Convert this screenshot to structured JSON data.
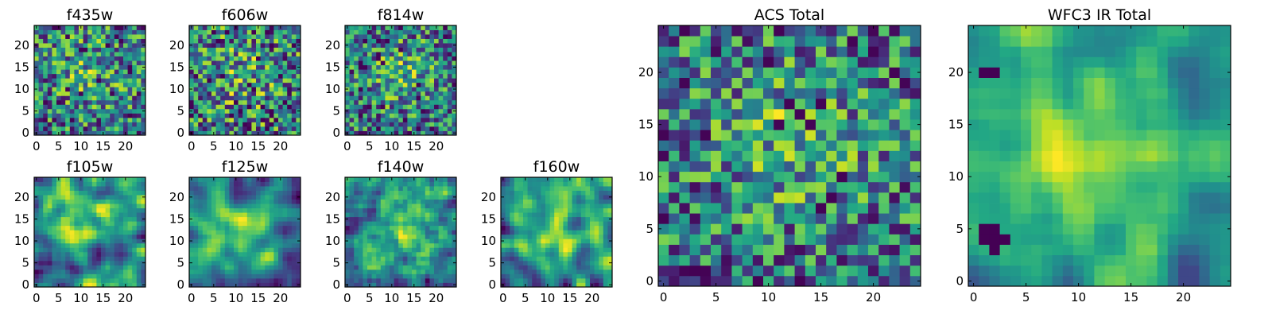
{
  "chart_data": [
    {
      "type": "heatmap",
      "title": "f435w",
      "grid": false,
      "xlim": [
        0,
        24
      ],
      "ylim": [
        0,
        24
      ],
      "xticks": [
        "0",
        "5",
        "10",
        "15",
        "20"
      ],
      "yticks": [
        "0",
        "5",
        "10",
        "15",
        "20"
      ],
      "values": [],
      "seed": 11,
      "smooth": 0,
      "hot": [
        [
          12,
          14,
          0.5
        ]
      ]
    },
    {
      "type": "heatmap",
      "title": "f606w",
      "grid": false,
      "xlim": [
        0,
        24
      ],
      "ylim": [
        0,
        24
      ],
      "xticks": [
        "0",
        "5",
        "10",
        "15",
        "20"
      ],
      "yticks": [
        "0",
        "5",
        "10",
        "15",
        "20"
      ],
      "values": [],
      "seed": 23,
      "smooth": 0,
      "hot": [
        [
          11,
          13,
          0.4
        ]
      ]
    },
    {
      "type": "heatmap",
      "title": "f814w",
      "grid": false,
      "xlim": [
        0,
        24
      ],
      "ylim": [
        0,
        24
      ],
      "xticks": [
        "0",
        "5",
        "10",
        "15",
        "20"
      ],
      "yticks": [
        "0",
        "5",
        "10",
        "15",
        "20"
      ],
      "values": [],
      "seed": 37,
      "smooth": 0,
      "hot": [
        [
          12,
          14,
          0.6
        ]
      ]
    },
    {
      "type": "heatmap",
      "title": "f105w",
      "grid": false,
      "xlim": [
        0,
        24
      ],
      "ylim": [
        0,
        24
      ],
      "xticks": [
        "0",
        "5",
        "10",
        "15",
        "20"
      ],
      "yticks": [
        "0",
        "5",
        "10",
        "15",
        "20"
      ],
      "values": [],
      "seed": 41,
      "smooth": 2,
      "hot": [
        [
          10,
          15,
          1.0
        ]
      ]
    },
    {
      "type": "heatmap",
      "title": "f125w",
      "grid": false,
      "xlim": [
        0,
        24
      ],
      "ylim": [
        0,
        24
      ],
      "xticks": [
        "0",
        "5",
        "10",
        "15",
        "20"
      ],
      "yticks": [
        "0",
        "5",
        "10",
        "15",
        "20"
      ],
      "values": [],
      "seed": 53,
      "smooth": 2,
      "hot": [
        [
          12,
          13,
          0.9
        ]
      ]
    },
    {
      "type": "heatmap",
      "title": "f140w",
      "grid": false,
      "xlim": [
        0,
        24
      ],
      "ylim": [
        0,
        24
      ],
      "xticks": [
        "0",
        "5",
        "10",
        "15",
        "20"
      ],
      "yticks": [
        "0",
        "5",
        "10",
        "15",
        "20"
      ],
      "values": [],
      "seed": 67,
      "smooth": 1,
      "hot": [
        [
          13,
          14,
          0.8
        ]
      ]
    },
    {
      "type": "heatmap",
      "title": "f160w",
      "grid": false,
      "xlim": [
        0,
        24
      ],
      "ylim": [
        0,
        24
      ],
      "xticks": [
        "0",
        "5",
        "10",
        "15",
        "20"
      ],
      "yticks": [
        "0",
        "5",
        "10",
        "15",
        "20"
      ],
      "values": [],
      "seed": 79,
      "smooth": 2,
      "hot": [
        [
          11,
          12,
          0.9
        ]
      ]
    },
    {
      "type": "heatmap",
      "title": "ACS Total",
      "grid": false,
      "xlim": [
        0,
        24
      ],
      "ylim": [
        0,
        24
      ],
      "xticks": [
        "0",
        "5",
        "10",
        "15",
        "20"
      ],
      "yticks": [
        "0",
        "5",
        "10",
        "15",
        "20"
      ],
      "values": [],
      "seed": 97,
      "smooth": 0,
      "hot": [
        [
          12,
          14,
          0.6
        ]
      ]
    },
    {
      "type": "heatmap",
      "title": "WFC3 IR Total",
      "grid": false,
      "xlim": [
        0,
        24
      ],
      "ylim": [
        0,
        24
      ],
      "xticks": [
        "0",
        "5",
        "10",
        "15",
        "20"
      ],
      "yticks": [
        "0",
        "5",
        "10",
        "15",
        "20"
      ],
      "values": [],
      "seed": 131,
      "smooth": 2,
      "hot": [
        [
          12,
          12,
          1.2
        ]
      ],
      "dark": [
        [
          1,
          5
        ],
        [
          2,
          5
        ],
        [
          1,
          4
        ],
        [
          2,
          4
        ],
        [
          3,
          4
        ],
        [
          2,
          3
        ],
        [
          1,
          20
        ],
        [
          2,
          20
        ]
      ]
    }
  ],
  "colors": {
    "colormap": "viridis",
    "axes": "#000000",
    "background": "#ffffff"
  }
}
